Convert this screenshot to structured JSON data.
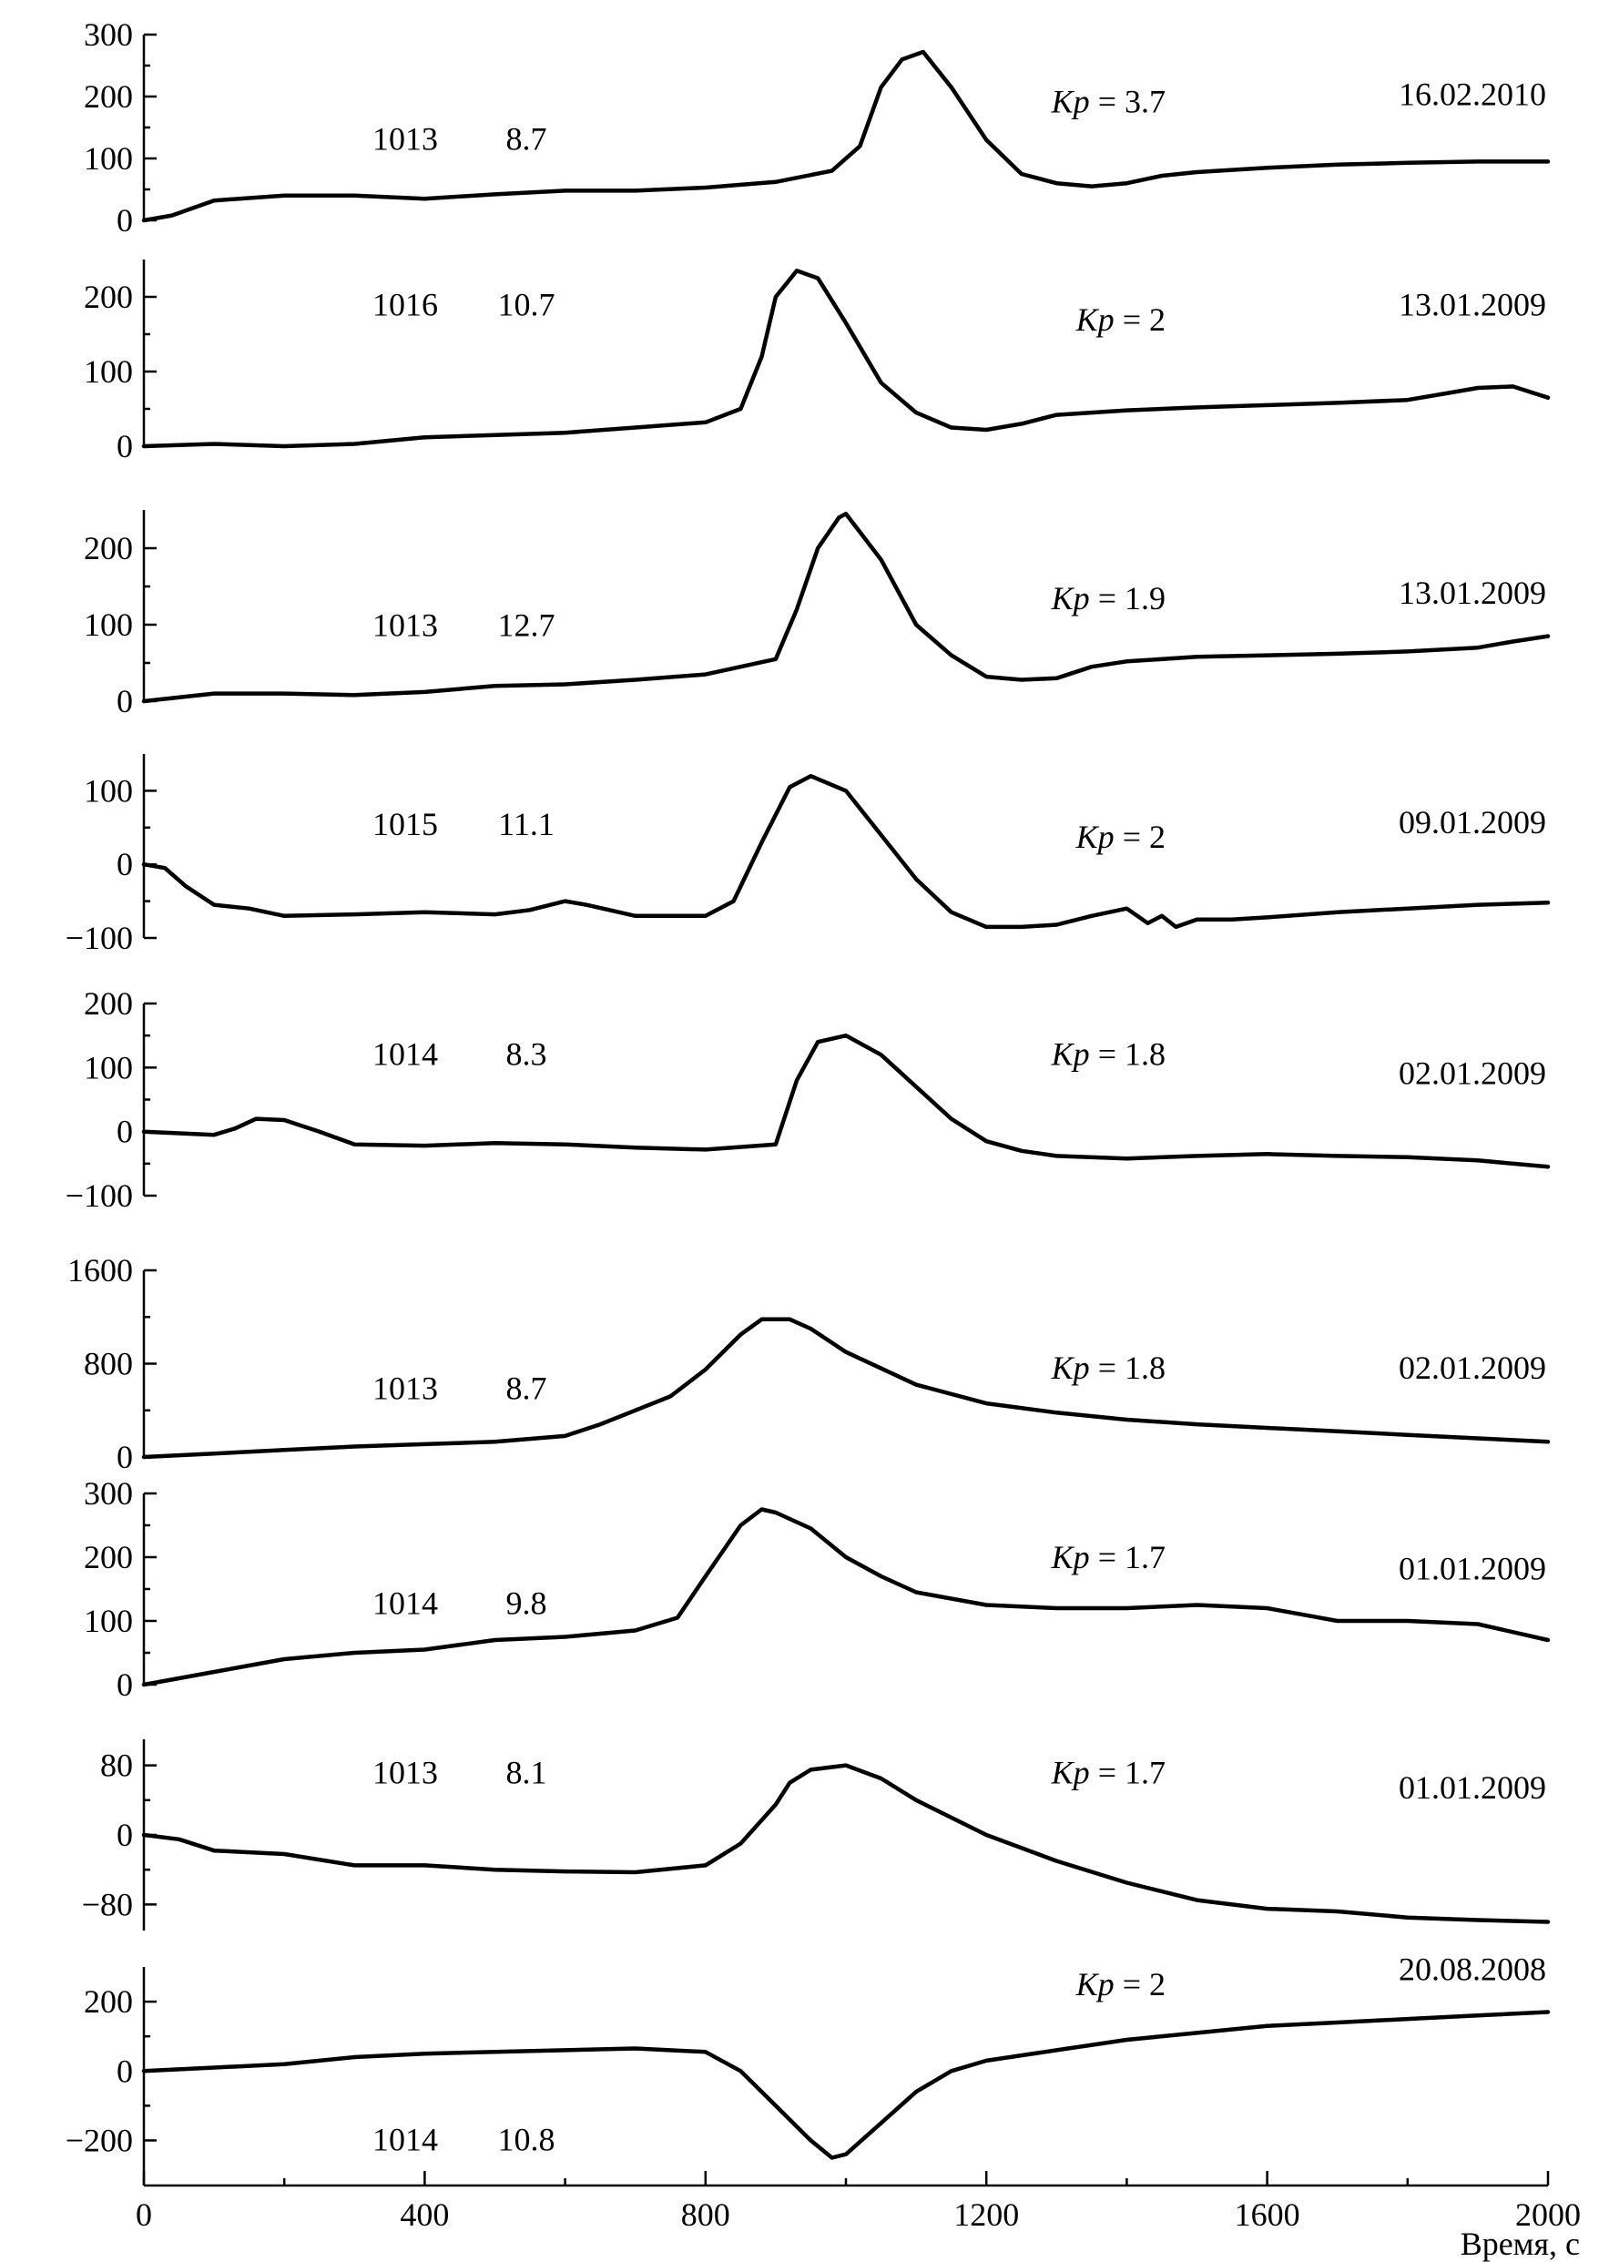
{
  "chart_data": {
    "type": "line",
    "xlabel": "Время, с",
    "xlim": [
      0,
      2000
    ],
    "xticks": [
      0,
      400,
      800,
      1200,
      1600,
      2000
    ],
    "xminor": [
      200,
      600,
      1000,
      1400,
      1800
    ],
    "panels": [
      {
        "date": "16.02.2010",
        "id": "1013",
        "value": "8.7",
        "kp": "3.7",
        "ylim": [
          0,
          300
        ],
        "yticks": [
          0,
          100,
          200,
          300
        ],
        "x": [
          0,
          40,
          100,
          200,
          300,
          400,
          500,
          600,
          700,
          800,
          900,
          980,
          1020,
          1050,
          1080,
          1110,
          1150,
          1200,
          1250,
          1300,
          1350,
          1400,
          1450,
          1500,
          1600,
          1700,
          1800,
          1900,
          2000
        ],
        "y": [
          0,
          8,
          32,
          40,
          40,
          35,
          42,
          48,
          48,
          53,
          62,
          80,
          120,
          215,
          260,
          272,
          215,
          130,
          75,
          60,
          55,
          60,
          72,
          78,
          85,
          90,
          93,
          95,
          95
        ]
      },
      {
        "date": "13.01.2009",
        "id": "1016",
        "value": "10.7",
        "kp": "2",
        "ylim": [
          0,
          250
        ],
        "yticks": [
          0,
          100,
          200
        ],
        "x": [
          0,
          100,
          200,
          300,
          400,
          500,
          600,
          700,
          800,
          850,
          880,
          900,
          930,
          960,
          1000,
          1050,
          1100,
          1150,
          1200,
          1250,
          1300,
          1400,
          1500,
          1600,
          1700,
          1800,
          1850,
          1900,
          1950,
          2000
        ],
        "y": [
          0,
          3,
          0,
          3,
          12,
          15,
          18,
          25,
          32,
          50,
          120,
          200,
          235,
          225,
          165,
          85,
          45,
          25,
          22,
          30,
          42,
          48,
          52,
          55,
          58,
          62,
          70,
          78,
          80,
          65
        ]
      },
      {
        "date": "13.01.2009",
        "id": "1013",
        "value": "12.7",
        "kp": "1.9",
        "ylim": [
          0,
          250
        ],
        "yticks": [
          0,
          100,
          200
        ],
        "x": [
          0,
          100,
          200,
          300,
          400,
          500,
          600,
          700,
          800,
          900,
          930,
          960,
          990,
          1000,
          1050,
          1100,
          1150,
          1200,
          1250,
          1300,
          1350,
          1400,
          1500,
          1600,
          1700,
          1800,
          1900,
          1950,
          2000
        ],
        "y": [
          0,
          10,
          10,
          8,
          12,
          20,
          22,
          28,
          35,
          55,
          120,
          200,
          240,
          245,
          185,
          100,
          60,
          32,
          28,
          30,
          45,
          52,
          58,
          60,
          62,
          65,
          70,
          78,
          85
        ]
      },
      {
        "date": "09.01.2009",
        "id": "1015",
        "value": "11.1",
        "kp": "2",
        "ylim": [
          -100,
          150
        ],
        "yticks": [
          -100,
          0,
          100
        ],
        "x": [
          0,
          30,
          60,
          100,
          150,
          200,
          300,
          400,
          500,
          550,
          600,
          630,
          700,
          800,
          840,
          880,
          920,
          950,
          1000,
          1050,
          1100,
          1150,
          1200,
          1250,
          1300,
          1350,
          1400,
          1430,
          1450,
          1470,
          1500,
          1550,
          1600,
          1700,
          1800,
          1900,
          2000
        ],
        "y": [
          0,
          -5,
          -30,
          -55,
          -60,
          -70,
          -68,
          -65,
          -68,
          -62,
          -50,
          -55,
          -70,
          -70,
          -50,
          30,
          105,
          120,
          100,
          40,
          -20,
          -65,
          -85,
          -85,
          -82,
          -70,
          -60,
          -80,
          -70,
          -85,
          -75,
          -75,
          -72,
          -65,
          -60,
          -55,
          -52
        ]
      },
      {
        "date": "02.01.2009",
        "id": "1014",
        "value": "8.3",
        "kp": "1.8",
        "ylim": [
          -100,
          200
        ],
        "yticks": [
          -100,
          0,
          100,
          200
        ],
        "x": [
          0,
          100,
          130,
          160,
          200,
          250,
          300,
          400,
          500,
          600,
          700,
          800,
          900,
          930,
          960,
          1000,
          1050,
          1100,
          1150,
          1200,
          1250,
          1300,
          1400,
          1500,
          1600,
          1700,
          1800,
          1900,
          2000
        ],
        "y": [
          0,
          -5,
          5,
          20,
          18,
          0,
          -20,
          -22,
          -18,
          -20,
          -25,
          -28,
          -20,
          80,
          140,
          150,
          120,
          70,
          20,
          -15,
          -30,
          -38,
          -42,
          -38,
          -35,
          -38,
          -40,
          -45,
          -55
        ]
      },
      {
        "date": "02.01.2009",
        "id": "1013",
        "value": "8.7",
        "kp": "1.8",
        "ylim": [
          0,
          1600
        ],
        "yticks": [
          0,
          800,
          1600
        ],
        "x": [
          0,
          100,
          200,
          300,
          400,
          500,
          600,
          650,
          700,
          750,
          800,
          850,
          880,
          920,
          950,
          1000,
          1100,
          1200,
          1300,
          1400,
          1500,
          1600,
          1700,
          1800,
          1900,
          2000
        ],
        "y": [
          0,
          30,
          60,
          90,
          110,
          130,
          180,
          280,
          400,
          520,
          750,
          1050,
          1180,
          1180,
          1100,
          900,
          620,
          460,
          380,
          320,
          280,
          250,
          220,
          190,
          160,
          130
        ]
      },
      {
        "date": "01.01.2009",
        "id": "1014",
        "value": "9.8",
        "kp": "1.7",
        "ylim": [
          0,
          300
        ],
        "yticks": [
          0,
          100,
          200,
          300
        ],
        "x": [
          0,
          100,
          200,
          300,
          400,
          500,
          600,
          700,
          760,
          800,
          850,
          880,
          900,
          950,
          1000,
          1050,
          1100,
          1200,
          1300,
          1400,
          1500,
          1600,
          1700,
          1800,
          1900,
          2000
        ],
        "y": [
          0,
          20,
          40,
          50,
          55,
          70,
          75,
          85,
          105,
          170,
          250,
          275,
          270,
          245,
          200,
          170,
          145,
          125,
          120,
          120,
          125,
          120,
          100,
          100,
          95,
          70
        ]
      },
      {
        "date": "01.01.2009",
        "id": "1013",
        "value": "8.1",
        "kp": "1.7",
        "ylim": [
          -110,
          110
        ],
        "yticks": [
          -80,
          0,
          80
        ],
        "x": [
          0,
          50,
          100,
          200,
          300,
          400,
          500,
          600,
          700,
          800,
          850,
          900,
          920,
          950,
          1000,
          1050,
          1100,
          1200,
          1300,
          1400,
          1500,
          1600,
          1700,
          1800,
          1900,
          2000
        ],
        "y": [
          0,
          -5,
          -18,
          -22,
          -35,
          -35,
          -40,
          -42,
          -43,
          -35,
          -10,
          35,
          60,
          75,
          80,
          65,
          40,
          0,
          -30,
          -55,
          -75,
          -85,
          -88,
          -95,
          -98,
          -100
        ]
      },
      {
        "date": "20.08.2008",
        "id": "1014",
        "value": "10.8",
        "kp": "2",
        "ylim": [
          -330,
          300
        ],
        "yticks": [
          -200,
          0,
          200
        ],
        "x": [
          0,
          100,
          200,
          300,
          400,
          500,
          600,
          700,
          800,
          850,
          900,
          950,
          980,
          1000,
          1050,
          1100,
          1150,
          1200,
          1300,
          1400,
          1500,
          1600,
          1700,
          1800,
          1900,
          2000
        ],
        "y": [
          0,
          10,
          20,
          40,
          50,
          55,
          60,
          65,
          55,
          0,
          -100,
          -200,
          -250,
          -240,
          -150,
          -60,
          0,
          30,
          60,
          90,
          110,
          130,
          140,
          150,
          160,
          170
        ]
      }
    ]
  }
}
